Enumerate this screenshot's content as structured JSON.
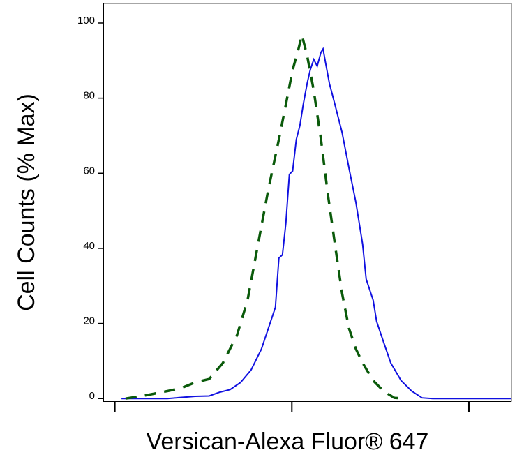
{
  "chart_data": {
    "type": "line",
    "x_label": "Versican-Alexa Fluor® 647",
    "y_label": "Cell Counts (% Max)",
    "xscale": "log",
    "xlim": [
      8.6,
      1740
    ],
    "xticks": [
      10,
      100,
      1000
    ],
    "ylim": [
      -0.7,
      105.2
    ],
    "yticks": [
      0,
      20,
      40,
      60,
      80,
      100
    ],
    "series": [
      {
        "color": "#1010e0",
        "style": "solid",
        "x": [
          10.9,
          19.8,
          28.4,
          34.1,
          39.1,
          44.8,
          51.3,
          58.8,
          67.3,
          73.8,
          80.7,
          84.5,
          88.5,
          92.5,
          96.8,
          101,
          106,
          111,
          116,
          122,
          127,
          133,
          139,
          146,
          150,
          155,
          163,
          175,
          192,
          210,
          230,
          251,
          263,
          288,
          301,
          330,
          362,
          414,
          475,
          544,
          624,
          1288,
          1740
        ],
        "values": [
          0,
          0,
          0.6,
          0.7,
          1.7,
          2.4,
          4.3,
          7.6,
          13.2,
          18.8,
          24.3,
          37.4,
          38.3,
          46.7,
          59.7,
          60.6,
          69,
          72.7,
          78.3,
          83.9,
          87.5,
          90.3,
          88.5,
          92.2,
          93.1,
          89.4,
          83.9,
          78.3,
          70.9,
          61.5,
          52.2,
          41.1,
          31.8,
          26.2,
          20.6,
          15,
          9.5,
          4.8,
          2,
          0.2,
          0,
          0,
          0
        ]
      },
      {
        "color": "#0a5a0a",
        "style": "dashed",
        "x": [
          11.5,
          15.1,
          19.8,
          23.7,
          28.4,
          34.1,
          40.8,
          49,
          56.2,
          64.4,
          73.8,
          84.5,
          92.5,
          101,
          109,
          114,
          122,
          133,
          146,
          160,
          175,
          192,
          210,
          230,
          251,
          288,
          330,
          379,
          434
        ],
        "values": [
          0,
          0.9,
          2,
          2.8,
          4.3,
          5.2,
          9.5,
          16.9,
          26.2,
          41.1,
          55.9,
          69,
          78.3,
          87.5,
          93.1,
          96.8,
          91.3,
          82,
          69,
          54.1,
          41.1,
          28.1,
          18.8,
          13.2,
          9.5,
          4.8,
          2,
          0.2,
          0
        ]
      }
    ]
  }
}
